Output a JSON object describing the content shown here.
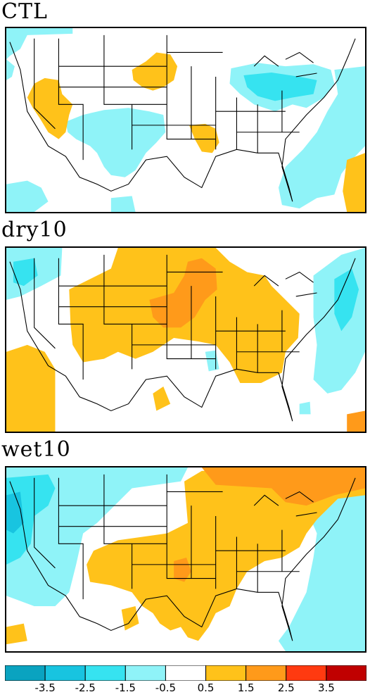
{
  "panels": [
    {
      "title": "CTL"
    },
    {
      "title": "dry10"
    },
    {
      "title": "wet10"
    }
  ],
  "colorbar": {
    "bins": [
      {
        "color": "#0aa3c0"
      },
      {
        "color": "#18c4e0"
      },
      {
        "color": "#36e3f0"
      },
      {
        "color": "#8ff3f8"
      },
      {
        "color": "#ffffff"
      },
      {
        "color": "#ffc21a"
      },
      {
        "color": "#ff9a1a"
      },
      {
        "color": "#ff3a10"
      },
      {
        "color": "#c00000"
      }
    ],
    "ticks": [
      "-3.5",
      "-2.5",
      "-1.5",
      "-0.5",
      "0.5",
      "1.5",
      "2.5",
      "3.5"
    ]
  },
  "colors": {
    "light_blue": "#8ff3f8",
    "mid_blue": "#36e3f0",
    "yellow": "#ffc21a",
    "orange": "#ff9a1a"
  }
}
